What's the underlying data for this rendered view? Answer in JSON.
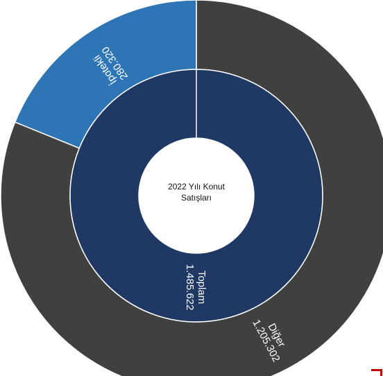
{
  "chart_data": {
    "type": "sunburst",
    "center_label_lines": [
      "2022 Yılı Konut",
      "Satışları"
    ],
    "inner_ring": [
      {
        "name": "Toplam",
        "value_label": "1.485.622",
        "value": 1485622
      }
    ],
    "outer_ring": [
      {
        "name": "Diğer",
        "value_label": "1.205.302",
        "value": 1205302
      },
      {
        "name": "İpotekli",
        "value_label": "280.320",
        "value": 280320
      }
    ],
    "colors": {
      "inner": "#1f3864",
      "diger": "#404040",
      "ipotekli": "#2e75b6",
      "border": "#ffffff",
      "center": "#ffffff",
      "corner_mark": "#c00000"
    }
  }
}
